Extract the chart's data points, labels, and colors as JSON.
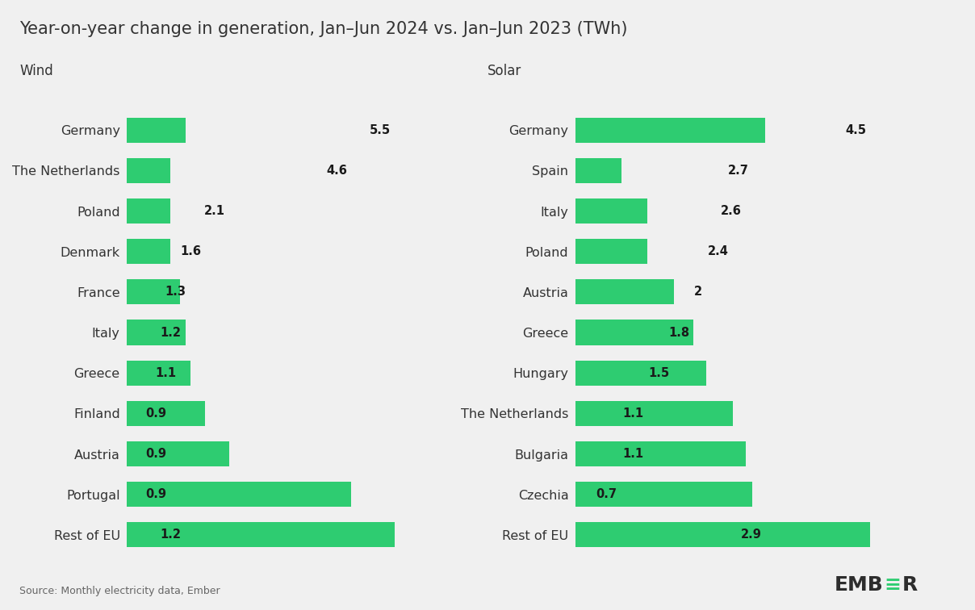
{
  "title": "Year-on-year change in generation, Jan–Jun 2024 vs. Jan–Jun 2023 (TWh)",
  "wind_label": "Wind",
  "solar_label": "Solar",
  "wind_countries": [
    "Germany",
    "The Netherlands",
    "Poland",
    "Denmark",
    "France",
    "Italy",
    "Greece",
    "Finland",
    "Austria",
    "Portugal",
    "Rest of EU"
  ],
  "wind_values": [
    5.5,
    4.6,
    2.1,
    1.6,
    1.3,
    1.2,
    1.1,
    0.9,
    0.9,
    0.9,
    1.2
  ],
  "solar_countries": [
    "Germany",
    "Spain",
    "Italy",
    "Poland",
    "Austria",
    "Greece",
    "Hungary",
    "The Netherlands",
    "Bulgaria",
    "Czechia",
    "Rest of EU"
  ],
  "solar_values": [
    4.5,
    2.7,
    2.6,
    2.4,
    2.0,
    1.8,
    1.5,
    1.1,
    1.1,
    0.7,
    2.9
  ],
  "bar_color": "#2ecc71",
  "background_color": "#f0f0f0",
  "text_color": "#333333",
  "source_text": "Source: Monthly electricity data, Ember",
  "title_fontsize": 15,
  "label_fontsize": 11.5,
  "value_fontsize": 10.5,
  "section_fontsize": 12
}
